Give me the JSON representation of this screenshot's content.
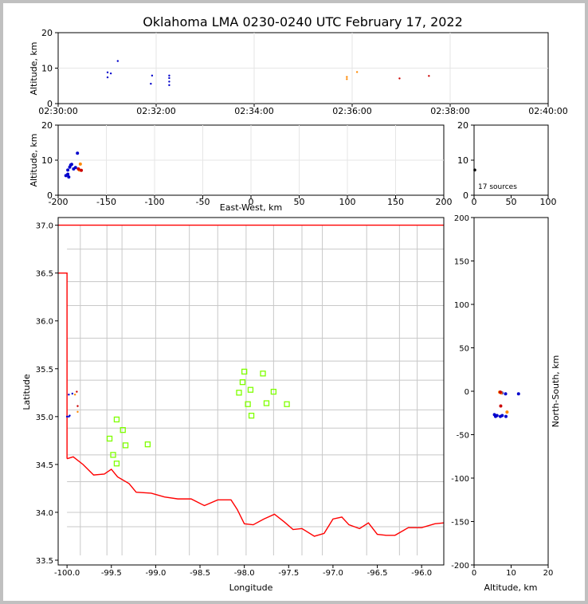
{
  "chart_data": {
    "type": "scatter",
    "title": "Oklahoma LMA 0230-0240 UTC February 17, 2022",
    "source_count_label": "17 sources",
    "colors": {
      "early": "#0000cc",
      "late": "#ff8800",
      "latest": "#cc0000",
      "stations": "#7fff00",
      "state_border": "#ff0000",
      "county_lines": "#c8c8c8"
    },
    "panels": {
      "time_height": {
        "ylabel": "Altitude, km",
        "ylim": [
          0,
          20
        ],
        "yticks": [
          "0",
          "10",
          "20"
        ],
        "xticks": [
          "02:30:00",
          "02:32:00",
          "02:34:00",
          "02:36:00",
          "02:38:00",
          "02:40:00"
        ],
        "points": [
          {
            "t": 60.5,
            "z": 8.8,
            "c": "early"
          },
          {
            "t": 60.5,
            "z": 7.4,
            "c": "early"
          },
          {
            "t": 64.5,
            "z": 8.5,
            "c": "early"
          },
          {
            "t": 73,
            "z": 12.0,
            "c": "early"
          },
          {
            "t": 113.5,
            "z": 5.6,
            "c": "early"
          },
          {
            "t": 115,
            "z": 7.9,
            "c": "early"
          },
          {
            "t": 136,
            "z": 5.2,
            "c": "early"
          },
          {
            "t": 136,
            "z": 6.2,
            "c": "early"
          },
          {
            "t": 136,
            "z": 7.2,
            "c": "early"
          },
          {
            "t": 136,
            "z": 7.9,
            "c": "early"
          },
          {
            "t": 353.5,
            "z": 6.9,
            "c": "late"
          },
          {
            "t": 353.5,
            "z": 7.5,
            "c": "late"
          },
          {
            "t": 366,
            "z": 8.9,
            "c": "late"
          },
          {
            "t": 418,
            "z": 7.1,
            "c": "latest"
          },
          {
            "t": 454,
            "z": 7.8,
            "c": "latest"
          }
        ]
      },
      "ew_height": {
        "xlabel": "East-West, km",
        "ylabel": "Altitude, km",
        "ylim": [
          0,
          20
        ],
        "xticks": [
          "-200",
          "-150",
          "-100",
          "-50",
          "0",
          "50",
          "100",
          "150",
          "200"
        ],
        "yticks": [
          "0",
          "10",
          "20"
        ],
        "points": [
          {
            "x": -192,
            "z": 5.6,
            "c": "early"
          },
          {
            "x": -190,
            "z": 6.0,
            "c": "early"
          },
          {
            "x": -189,
            "z": 5.2,
            "c": "early"
          },
          {
            "x": -190,
            "z": 7.2,
            "c": "early"
          },
          {
            "x": -188,
            "z": 8.0,
            "c": "early"
          },
          {
            "x": -187,
            "z": 8.6,
            "c": "early"
          },
          {
            "x": -186,
            "z": 8.8,
            "c": "early"
          },
          {
            "x": -184,
            "z": 7.5,
            "c": "early"
          },
          {
            "x": -182,
            "z": 7.9,
            "c": "early"
          },
          {
            "x": -180,
            "z": 12.0,
            "c": "early"
          },
          {
            "x": -178,
            "z": 7.2,
            "c": "late"
          },
          {
            "x": -177,
            "z": 8.9,
            "c": "late"
          },
          {
            "x": -179,
            "z": 7.5,
            "c": "latest"
          },
          {
            "x": -176,
            "z": 7.1,
            "c": "latest"
          }
        ]
      },
      "height_hist": {
        "xticks": [
          "0",
          "50",
          "100"
        ],
        "yticks": [
          "0",
          "10",
          "20"
        ],
        "points": [
          {
            "x": 1,
            "z": 7.2
          }
        ]
      },
      "plan_view": {
        "xlabel": "Longitude",
        "ylabel": "Latitude",
        "xlim": [
          -100.1,
          -95.75
        ],
        "ylim": [
          33.45,
          37.08
        ],
        "xticks": [
          "-100.0",
          "-99.5",
          "-99.0",
          "-98.5",
          "-98.0",
          "-97.5",
          "-97.0",
          "-96.5",
          "-96.0"
        ],
        "yticks": [
          "33.5",
          "34.0",
          "34.5",
          "35.0",
          "35.5",
          "36.0",
          "36.5",
          "37.0"
        ],
        "sources": [
          {
            "lon": -100.0,
            "lat": 35.0,
            "c": "early"
          },
          {
            "lon": -99.98,
            "lat": 35.0,
            "c": "early"
          },
          {
            "lon": -99.97,
            "lat": 35.01,
            "c": "early"
          },
          {
            "lon": -99.98,
            "lat": 35.23,
            "c": "early"
          },
          {
            "lon": -99.94,
            "lat": 35.24,
            "c": "early"
          },
          {
            "lon": -99.91,
            "lat": 35.23,
            "c": "late"
          },
          {
            "lon": -99.89,
            "lat": 35.26,
            "c": "latest"
          },
          {
            "lon": -99.88,
            "lat": 35.11,
            "c": "latest"
          },
          {
            "lon": -99.88,
            "lat": 35.05,
            "c": "late"
          }
        ],
        "stations": [
          {
            "lon": -98.0,
            "lat": 35.47
          },
          {
            "lon": -97.79,
            "lat": 35.45
          },
          {
            "lon": -98.02,
            "lat": 35.36
          },
          {
            "lon": -97.93,
            "lat": 35.28
          },
          {
            "lon": -98.06,
            "lat": 35.25
          },
          {
            "lon": -97.67,
            "lat": 35.26
          },
          {
            "lon": -97.96,
            "lat": 35.13
          },
          {
            "lon": -97.75,
            "lat": 35.14
          },
          {
            "lon": -97.52,
            "lat": 35.13
          },
          {
            "lon": -97.92,
            "lat": 35.01
          },
          {
            "lon": -99.44,
            "lat": 34.97
          },
          {
            "lon": -99.37,
            "lat": 34.86
          },
          {
            "lon": -99.52,
            "lat": 34.77
          },
          {
            "lon": -99.34,
            "lat": 34.7
          },
          {
            "lon": -99.09,
            "lat": 34.71
          },
          {
            "lon": -99.48,
            "lat": 34.6
          },
          {
            "lon": -99.44,
            "lat": 34.51
          }
        ]
      },
      "ns_height": {
        "xlabel": "Altitude, km",
        "ylabel": "North-South, km",
        "xlim": [
          0,
          20
        ],
        "ylim": [
          -200,
          200
        ],
        "xticks": [
          "0",
          "10",
          "20"
        ],
        "yticks": [
          "200",
          "150",
          "100",
          "50",
          "0",
          "-50",
          "-100",
          "-150",
          "-200"
        ],
        "points": [
          {
            "z": 5.5,
            "y": -27,
            "c": "early"
          },
          {
            "z": 5.8,
            "y": -29,
            "c": "early"
          },
          {
            "z": 6.2,
            "y": -28,
            "c": "early"
          },
          {
            "z": 7.1,
            "y": -29,
            "c": "early"
          },
          {
            "z": 7.6,
            "y": -28,
            "c": "early"
          },
          {
            "z": 8.6,
            "y": -29,
            "c": "early"
          },
          {
            "z": 7.5,
            "y": -2,
            "c": "early"
          },
          {
            "z": 8.5,
            "y": -3,
            "c": "early"
          },
          {
            "z": 12.0,
            "y": -3,
            "c": "early"
          },
          {
            "z": 6.9,
            "y": -1,
            "c": "late"
          },
          {
            "z": 7.3,
            "y": -2,
            "c": "late"
          },
          {
            "z": 8.9,
            "y": -24,
            "c": "late"
          },
          {
            "z": 7.1,
            "y": -1,
            "c": "latest"
          },
          {
            "z": 7.2,
            "y": -17,
            "c": "latest"
          }
        ]
      }
    }
  }
}
